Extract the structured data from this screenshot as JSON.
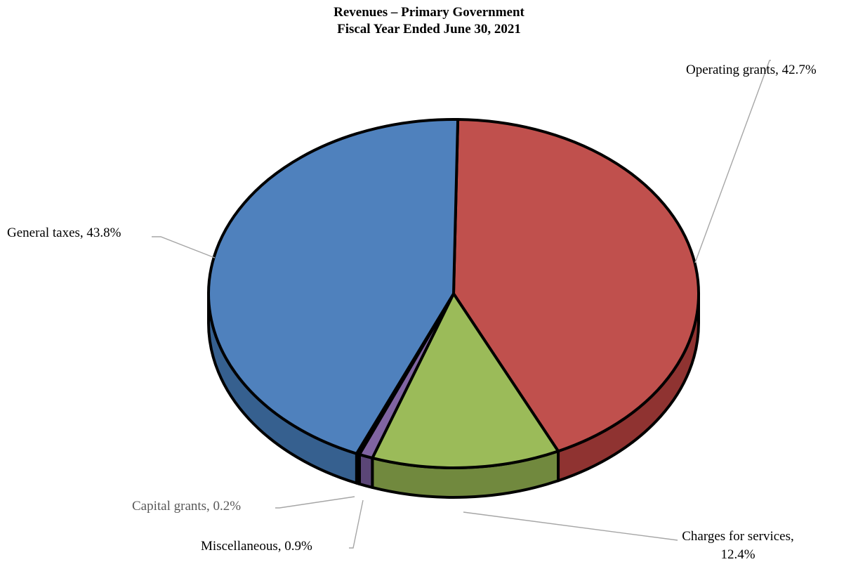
{
  "chart_data": {
    "type": "pie",
    "title": "Revenues – Primary Government",
    "subtitle": "Fiscal Year Ended June 30, 2021",
    "slices": [
      {
        "name": "Operating grants",
        "label": "Operating grants, 42.7%",
        "value": 42.7,
        "color": "#c0504d",
        "side_color": "#8f3331"
      },
      {
        "name": "Charges for services",
        "label_line1": "Charges for services,",
        "label_line2": "12.4%",
        "value": 12.4,
        "color": "#9bbb59",
        "side_color": "#71893e"
      },
      {
        "name": "Miscellaneous",
        "label": "Miscellaneous, 0.9%",
        "value": 0.9,
        "color": "#8064a2",
        "side_color": "#5b4677"
      },
      {
        "name": "Capital grants",
        "label": "Capital grants, 0.2%",
        "value": 0.2,
        "color": "#4bacc6",
        "side_color": "#2f7d92"
      },
      {
        "name": "General taxes",
        "label": "General taxes, 43.8%",
        "value": 43.8,
        "color": "#4f81bd",
        "side_color": "#36608f"
      }
    ]
  }
}
